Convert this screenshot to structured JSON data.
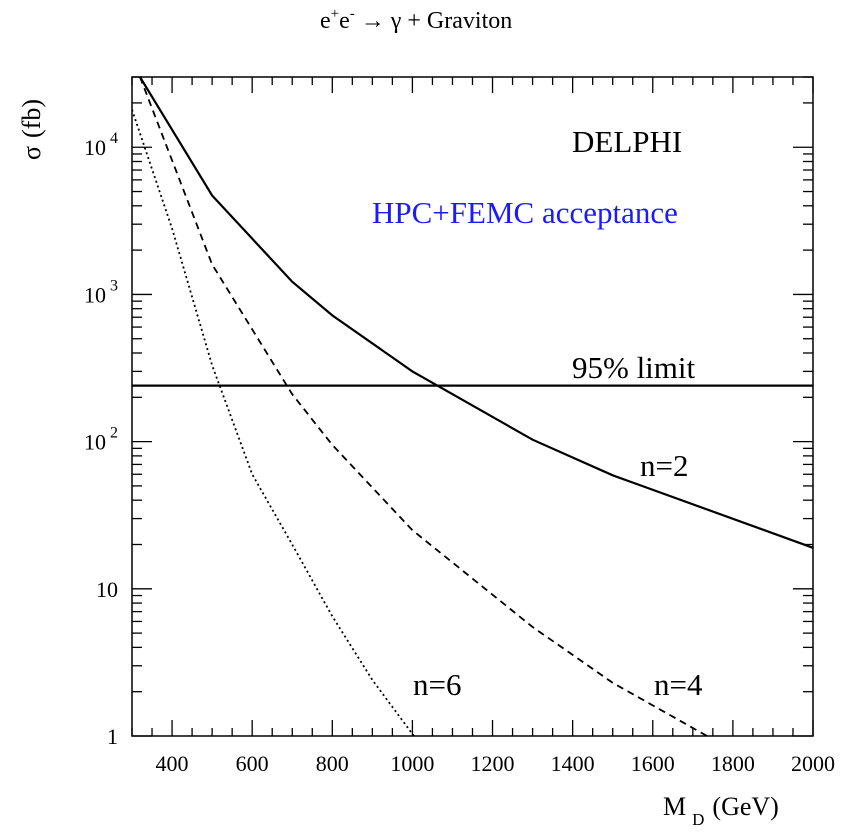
{
  "title": {
    "e1": "e",
    "sup1": "+",
    "e2": "e",
    "sup2": "-",
    "arrow": "→",
    "gamma": "γ",
    "rest": " + Graviton"
  },
  "ylabel": {
    "symbol": "σ",
    "unit": "(fb)"
  },
  "xlabel": {
    "main": "M",
    "sub": "D",
    "unit": "(GeV)"
  },
  "annotations": {
    "experiment": "DELPHI",
    "acceptance": "HPC+FEMC acceptance",
    "limit_label": "95% limit",
    "n2": "n=2",
    "n4": "n=4",
    "n6": "n=6"
  },
  "colors": {
    "acceptance_text": "#1a1aff",
    "axes": "#000000"
  },
  "chart_data": {
    "type": "line",
    "x_scale": "linear",
    "y_scale": "log",
    "xlim": [
      300,
      2000
    ],
    "ylim": [
      1,
      30000
    ],
    "x_ticks": [
      400,
      600,
      800,
      1000,
      1200,
      1400,
      1600,
      1800,
      2000
    ],
    "y_ticks": [
      {
        "value": 1,
        "base": "1",
        "exp": ""
      },
      {
        "value": 10,
        "base": "10",
        "exp": ""
      },
      {
        "value": 100,
        "base": "10",
        "exp": "2"
      },
      {
        "value": 1000,
        "base": "10",
        "exp": "3"
      },
      {
        "value": 10000,
        "base": "10",
        "exp": "4"
      }
    ],
    "grid": false,
    "series": [
      {
        "name": "n=2",
        "style": "solid",
        "points": [
          [
            320,
            30000
          ],
          [
            500,
            4700
          ],
          [
            700,
            1220
          ],
          [
            800,
            720
          ],
          [
            1000,
            300
          ],
          [
            1300,
            103
          ],
          [
            1500,
            59
          ],
          [
            2000,
            19
          ]
        ]
      },
      {
        "name": "n=4",
        "style": "dashed",
        "points": [
          [
            320,
            30000
          ],
          [
            500,
            1600
          ],
          [
            700,
            210
          ],
          [
            800,
            95
          ],
          [
            1000,
            25
          ],
          [
            1300,
            5.5
          ],
          [
            1500,
            2.3
          ],
          [
            1750,
            0.95
          ]
        ]
      },
      {
        "name": "n=6",
        "style": "dotted",
        "points": [
          [
            300,
            18000
          ],
          [
            400,
            2800
          ],
          [
            500,
            330
          ],
          [
            600,
            60
          ],
          [
            700,
            20
          ],
          [
            800,
            6.5
          ],
          [
            900,
            2.4
          ],
          [
            1010,
            0.95
          ]
        ]
      }
    ],
    "hlines": [
      {
        "name": "95% limit",
        "value": 240,
        "style": "solid"
      }
    ]
  }
}
